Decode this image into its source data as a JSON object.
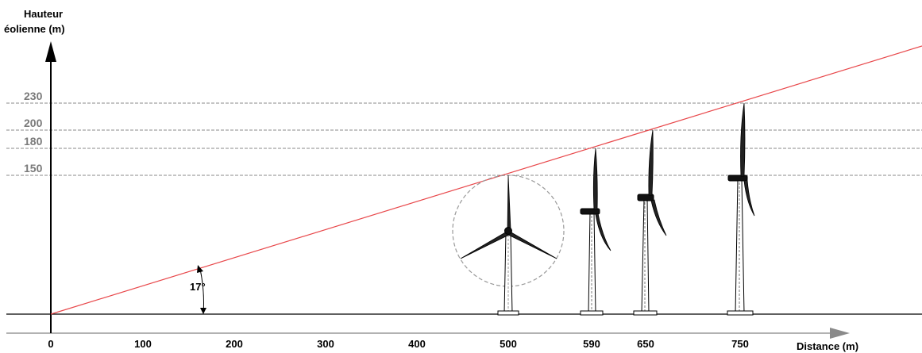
{
  "y_axis": {
    "label_line1": "Hauteur",
    "label_line2": "éolienne (m)"
  },
  "x_axis": {
    "label": "Distance (m)"
  },
  "x_ticks": [
    "0",
    "100",
    "200",
    "300",
    "400",
    "500",
    "590",
    "650",
    "750"
  ],
  "height_levels": [
    {
      "label": "230",
      "value": 230
    },
    {
      "label": "200",
      "value": 200
    },
    {
      "label": "180",
      "value": 180
    },
    {
      "label": "150",
      "value": 150
    }
  ],
  "angle_label": "17°",
  "turbines": [
    {
      "distance": 500,
      "height": 150,
      "view": "front"
    },
    {
      "distance": 590,
      "height": 180,
      "view": "side"
    },
    {
      "distance": 650,
      "height": 200,
      "view": "side"
    },
    {
      "distance": 750,
      "height": 230,
      "view": "side"
    }
  ],
  "colors": {
    "sight_line": "#e8474a",
    "dashed": "#8a8a8a",
    "axis": "#000000",
    "level_labels": "#7a7a7a"
  }
}
